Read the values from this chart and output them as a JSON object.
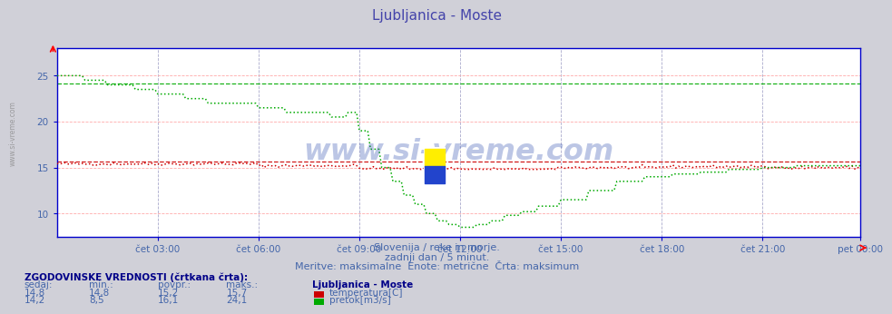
{
  "title": "Ljubljanica - Moste",
  "title_color": "#4444aa",
  "bg_color": "#d0d0d8",
  "plot_bg_color": "#ffffff",
  "grid_color_vert": "#aaaacc",
  "grid_color_horiz": "#ffaaaa",
  "xlabel_ticks": [
    "čet 03:00",
    "čet 06:00",
    "čet 09:00",
    "čet 12:00",
    "čet 15:00",
    "čet 18:00",
    "čet 21:00",
    "pet 00:00"
  ],
  "ylim": [
    7.5,
    28.0
  ],
  "yticks": [
    10,
    15,
    20,
    25
  ],
  "n": 288,
  "temp_color": "#cc0000",
  "flow_color": "#00aa00",
  "watermark": "www.si-vreme.com",
  "subtitle1": "Slovenija / reke in morje.",
  "subtitle2": "zadnji dan / 5 minut.",
  "subtitle3": "Meritve: maksimalne  Enote: metrične  Črta: maksimum",
  "text_color": "#4466aa",
  "footer_title_color": "#000088",
  "legend_title": "Ljubljanica - Moste",
  "legend_items": [
    "temperatura[C]",
    "pretok[m3/s]"
  ],
  "legend_colors": [
    "#cc0000",
    "#00aa00"
  ],
  "table_header": [
    "sedaj:",
    "min.:",
    "povpr.:",
    "maks.:"
  ],
  "table_temp": [
    "14,8",
    "14,8",
    "15,2",
    "15,7"
  ],
  "table_flow": [
    "14,2",
    "8,5",
    "16,1",
    "24,1"
  ],
  "hist_temp_max": 15.7,
  "hist_flow_max": 24.1,
  "axis_color": "#0000cc",
  "sidebar_text": "www.si-vreme.com"
}
